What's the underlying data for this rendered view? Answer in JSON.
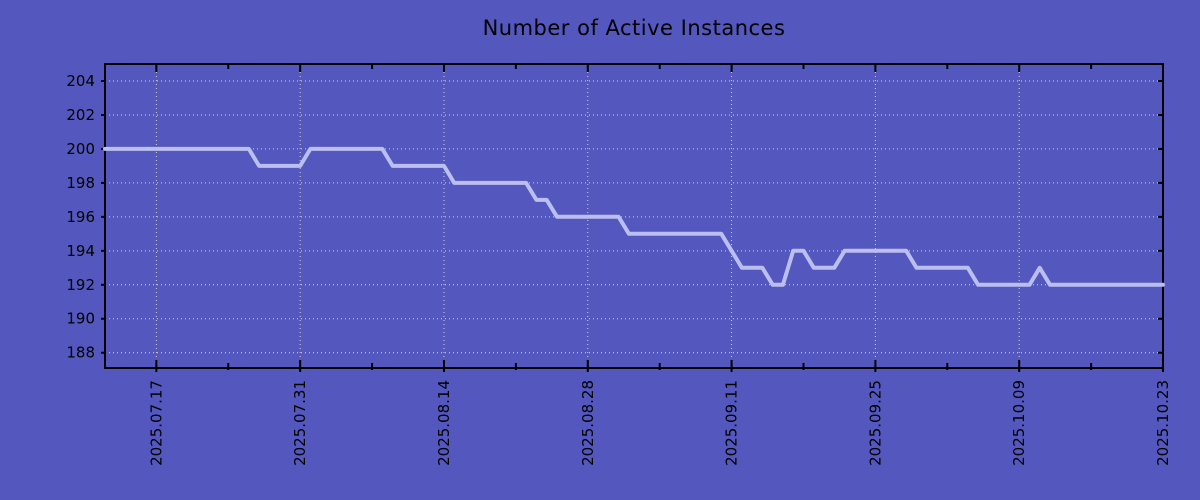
{
  "chart": {
    "colors": {
      "background": "#5457BD",
      "plot_background": "#5457BD",
      "line": "#BBBEF0",
      "grid": "#D5D5CA",
      "axis": "#000000",
      "text": "#000000"
    }
  },
  "chart_data": {
    "type": "line",
    "title": "Number of Active Instances",
    "xlabel": "",
    "ylabel": "",
    "grid": true,
    "legend": "none",
    "ylim": [
      187.1,
      205.0
    ],
    "y_ticks": [
      188,
      190,
      192,
      194,
      196,
      198,
      200,
      202,
      204
    ],
    "x_major_tick_labels": [
      "2025.07.17",
      "2025.07.31",
      "2025.08.14",
      "2025.08.28",
      "2025.09.11",
      "2025.09.25",
      "2025.10.09",
      "2025.10.23"
    ],
    "x_major_tick_indices": [
      5,
      19,
      33,
      47,
      61,
      75,
      89,
      103
    ],
    "x_minor_tick_indices": [
      12,
      26,
      40,
      54,
      68,
      82,
      96
    ],
    "x": [
      "2025-07-12",
      "2025-07-13",
      "2025-07-14",
      "2025-07-15",
      "2025-07-16",
      "2025-07-17",
      "2025-07-18",
      "2025-07-19",
      "2025-07-20",
      "2025-07-21",
      "2025-07-22",
      "2025-07-23",
      "2025-07-24",
      "2025-07-25",
      "2025-07-26",
      "2025-07-27",
      "2025-07-28",
      "2025-07-29",
      "2025-07-30",
      "2025-07-31",
      "2025-08-01",
      "2025-08-02",
      "2025-08-03",
      "2025-08-04",
      "2025-08-05",
      "2025-08-06",
      "2025-08-07",
      "2025-08-08",
      "2025-08-09",
      "2025-08-10",
      "2025-08-11",
      "2025-08-12",
      "2025-08-13",
      "2025-08-14",
      "2025-08-15",
      "2025-08-16",
      "2025-08-17",
      "2025-08-18",
      "2025-08-19",
      "2025-08-20",
      "2025-08-21",
      "2025-08-22",
      "2025-08-23",
      "2025-08-24",
      "2025-08-25",
      "2025-08-26",
      "2025-08-27",
      "2025-08-28",
      "2025-08-29",
      "2025-08-30",
      "2025-08-31",
      "2025-09-01",
      "2025-09-02",
      "2025-09-03",
      "2025-09-04",
      "2025-09-05",
      "2025-09-06",
      "2025-09-07",
      "2025-09-08",
      "2025-09-09",
      "2025-09-10",
      "2025-09-11",
      "2025-09-12",
      "2025-09-13",
      "2025-09-14",
      "2025-09-15",
      "2025-09-16",
      "2025-09-17",
      "2025-09-18",
      "2025-09-19",
      "2025-09-20",
      "2025-09-21",
      "2025-09-22",
      "2025-09-23",
      "2025-09-24",
      "2025-09-25",
      "2025-09-26",
      "2025-09-27",
      "2025-09-28",
      "2025-09-29",
      "2025-09-30",
      "2025-10-01",
      "2025-10-02",
      "2025-10-03",
      "2025-10-04",
      "2025-10-05",
      "2025-10-06",
      "2025-10-07",
      "2025-10-08",
      "2025-10-09",
      "2025-10-10",
      "2025-10-11",
      "2025-10-12",
      "2025-10-13",
      "2025-10-14",
      "2025-10-15",
      "2025-10-16",
      "2025-10-17",
      "2025-10-18",
      "2025-10-19",
      "2025-10-20",
      "2025-10-21",
      "2025-10-22",
      "2025-10-23"
    ],
    "values": [
      200,
      200,
      200,
      200,
      200,
      200,
      200,
      200,
      200,
      200,
      200,
      200,
      200,
      200,
      200,
      199,
      199,
      199,
      199,
      199,
      200,
      200,
      200,
      200,
      200,
      200,
      200,
      200,
      199,
      199,
      199,
      199,
      199,
      199,
      198,
      198,
      198,
      198,
      198,
      198,
      198,
      198,
      197,
      197,
      196,
      196,
      196,
      196,
      196,
      196,
      196,
      195,
      195,
      195,
      195,
      195,
      195,
      195,
      195,
      195,
      195,
      194,
      193,
      193,
      193,
      192,
      192,
      194,
      194,
      193,
      193,
      193,
      194,
      194,
      194,
      194,
      194,
      194,
      194,
      193,
      193,
      193,
      193,
      193,
      193,
      192,
      192,
      192,
      192,
      192,
      192,
      193,
      192,
      192,
      192,
      192,
      192,
      192,
      192,
      192,
      192,
      192,
      192,
      192
    ]
  }
}
